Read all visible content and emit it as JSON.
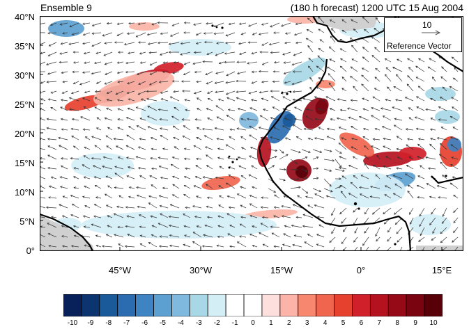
{
  "header": {
    "left_title": "Ensemble 9",
    "right_title": "(180 h forecast) 1200 UTC 15 Aug 2004"
  },
  "axes": {
    "lat_labels": [
      "40°N",
      "35°N",
      "30°N",
      "25°N",
      "20°N",
      "15°N",
      "10°N",
      "5°N",
      "0°"
    ],
    "lon_labels": [
      "45°W",
      "30°W",
      "15°W",
      "0°",
      "15°E"
    ]
  },
  "reference_vector": {
    "magnitude": "10",
    "label": "Reference Vector"
  },
  "colorbar": {
    "tick_labels": [
      "-10",
      "-9",
      "-8",
      "-7",
      "-6",
      "-5",
      "-4",
      "-3",
      "-2",
      "-1",
      "0",
      "1",
      "2",
      "3",
      "4",
      "5",
      "6",
      "7",
      "8",
      "9",
      "10"
    ],
    "colors": [
      "#08215a",
      "#0c3570",
      "#1a5a9a",
      "#2b6cb0",
      "#3e83c2",
      "#5c9fd1",
      "#7fb9dd",
      "#a8d7e6",
      "#d4eef6",
      "#ffffff",
      "#ffffff",
      "#fde0dd",
      "#fbb4a7",
      "#f7876e",
      "#f0654e",
      "#e6402f",
      "#d0202a",
      "#b5121f",
      "#960a18",
      "#7a0510",
      "#580008"
    ]
  },
  "colors": {
    "land_gray": "#d0d0d0",
    "coast": "#000000",
    "vector": "#333333"
  }
}
